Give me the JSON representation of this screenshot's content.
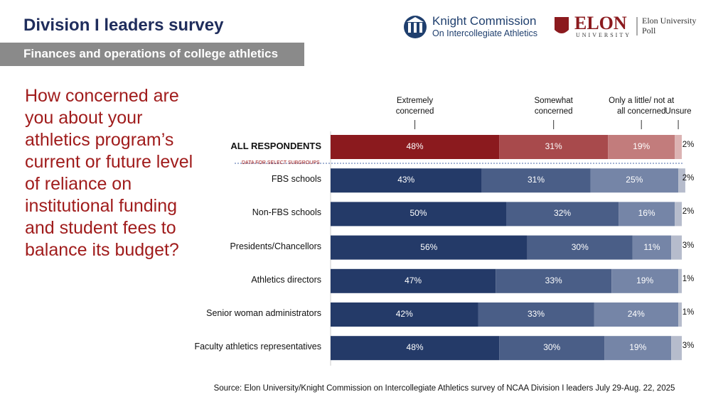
{
  "header": {
    "title": "Division I leaders survey",
    "subtitle": "Finances and operations of college athletics"
  },
  "logos": {
    "knight_line1": "Knight Commission",
    "knight_line2": "On Intercollegiate Athletics",
    "elon": "ELON",
    "elon_sub": "UNIVERSITY",
    "poll_line1": "Elon University",
    "poll_line2": "Poll"
  },
  "question": "How concerned are you about your athletics program’s current or future level of reliance on institutional funding and student fees to balance its budget?",
  "source": "Source: Elon University/Knight Commission on Intercollegiate Athletics survey of NCAA Division I leaders July 29-Aug. 22, 2025",
  "chart_data": {
    "type": "stacked-bar-horizontal",
    "annotation": "DATA FOR SELECT SUBGROUPS",
    "categories": [
      "ALL RESPONDENTS",
      "FBS schools",
      "Non-FBS schools",
      "Presidents/Chancellors",
      "Athletics directors",
      "Senior woman administrators",
      "Faculty athletics representatives"
    ],
    "xlim": [
      0,
      100
    ],
    "series": [
      {
        "name": "Extremely concerned",
        "color": "#243a68",
        "highlight_color": "#8b1a1e",
        "values": [
          48,
          43,
          50,
          56,
          47,
          42,
          48
        ],
        "value_labels": [
          "48%",
          "43%",
          "50%",
          "56%",
          "47%",
          "42%",
          "48%"
        ]
      },
      {
        "name": "Somewhat concerned",
        "color": "#4a5e87",
        "highlight_color": "#a84a4c",
        "values": [
          31,
          31,
          32,
          30,
          33,
          33,
          30
        ],
        "value_labels": [
          "31%",
          "31%",
          "32%",
          "30%",
          "33%",
          "33%",
          "30%"
        ]
      },
      {
        "name": "Only a little/ not at all concerned",
        "color": "#7585a7",
        "highlight_color": "#c27c7c",
        "values": [
          19,
          25,
          16,
          11,
          19,
          24,
          19
        ],
        "value_labels": [
          "19%",
          "25%",
          "16%",
          "11%",
          "19%",
          "24%",
          "19%"
        ]
      },
      {
        "name": "Unsure",
        "color": "#b6bccc",
        "highlight_color": "#dcb3b3",
        "values": [
          2,
          2,
          2,
          3,
          1,
          1,
          3
        ],
        "value_labels": [
          "2%",
          "2%",
          "2%",
          "3%",
          "1%",
          "1%",
          "3%"
        ]
      }
    ]
  }
}
